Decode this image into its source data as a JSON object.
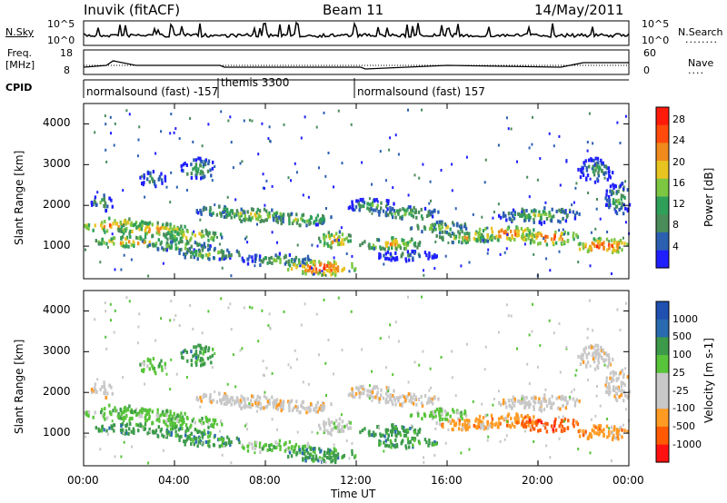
{
  "header": {
    "title": "Inuvik (fitACF)",
    "beam": "Beam 11",
    "date": "14/May/2011"
  },
  "panels": {
    "nsky_label": "N.Sky",
    "nsky_ticks": [
      "10^5",
      "10^0"
    ],
    "nsearch_label": "N.Search",
    "nsearch_ticks": [
      "10^5",
      "10^0"
    ],
    "freq_label_1": "Freq.",
    "freq_label_2": "[MHz]",
    "freq_ticks": [
      "18",
      "8"
    ],
    "nave_label": "Nave",
    "nave_ticks": [
      "60",
      "0"
    ],
    "cpid_label": "CPID",
    "cpid_modes": [
      "normalsound (fast) -157",
      "themis 3300",
      "normalsound (fast) 157"
    ]
  },
  "colors": {
    "power": [
      "#1f1fff",
      "#2b5fb0",
      "#4a8c5a",
      "#2fa05a",
      "#7cc642",
      "#e8c420",
      "#f08a1c",
      "#ff4a0c",
      "#ff1a0a"
    ],
    "velocity": [
      "#ff1111",
      "#ff5a00",
      "#ff9a22",
      "#c8c8c8",
      "#c8c8c8",
      "#58c43a",
      "#3c9a4a",
      "#2a6ab0",
      "#2050b0"
    ],
    "ground_scatter": "#c8c8c8"
  },
  "chart_data": [
    {
      "type": "heatmap",
      "name": "power",
      "ylabel": "Slant Range [km]",
      "x_ticks": [
        "00:00",
        "04:00",
        "08:00",
        "12:00",
        "16:00",
        "20:00",
        "00:00"
      ],
      "y_ticks": [
        "1000",
        "2000",
        "3000",
        "4000"
      ],
      "ylim": [
        200,
        4500
      ],
      "xlim": [
        0,
        24
      ],
      "colorbar_label": "Power [dB]",
      "colorbar_ticks": [
        "4",
        "8",
        "12",
        "16",
        "20",
        "24",
        "28"
      ],
      "clim": [
        0,
        30
      ]
    },
    {
      "type": "heatmap",
      "name": "velocity",
      "ylabel": "Slant Range [km]",
      "xlabel": "Time UT",
      "x_ticks": [
        "00:00",
        "04:00",
        "08:00",
        "12:00",
        "16:00",
        "20:00",
        "00:00"
      ],
      "y_ticks": [
        "1000",
        "2000",
        "3000",
        "4000"
      ],
      "ylim": [
        200,
        4500
      ],
      "xlim": [
        0,
        24
      ],
      "colorbar_label": "Velocity [m s-1]",
      "colorbar_ticks": [
        "1000",
        "500",
        "100",
        "25",
        "-25",
        "-100",
        "-500",
        "-1000"
      ]
    }
  ]
}
